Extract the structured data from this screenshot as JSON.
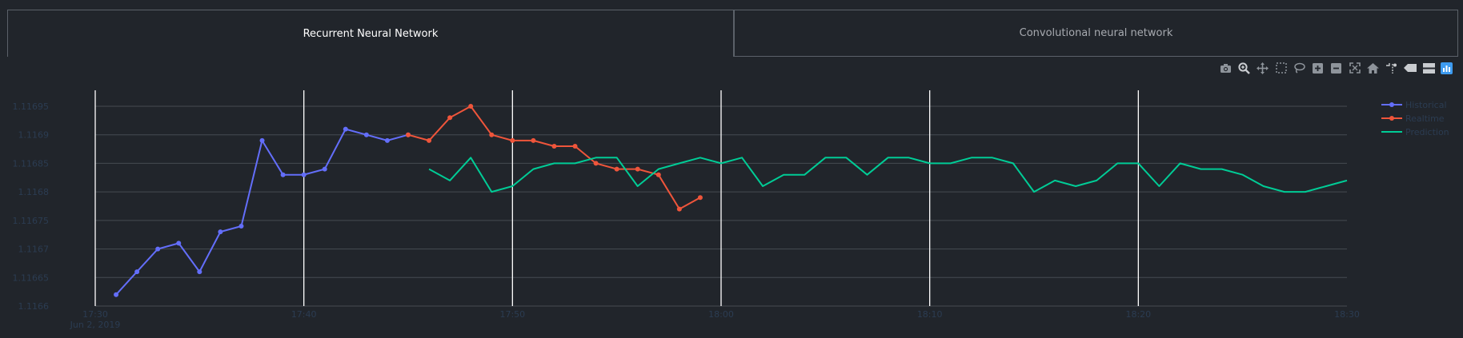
{
  "tabs": [
    {
      "label": "Recurrent Neural Network",
      "active": true
    },
    {
      "label": "Convolutional neural network",
      "active": false
    }
  ],
  "modebar": [
    {
      "name": "camera-icon",
      "title": "Download plot as a png"
    },
    {
      "name": "zoom-icon",
      "title": "Zoom"
    },
    {
      "name": "pan-icon",
      "title": "Pan"
    },
    {
      "name": "box-select-icon",
      "title": "Box Select"
    },
    {
      "name": "lasso-select-icon",
      "title": "Lasso Select"
    },
    {
      "name": "zoom-in-icon",
      "title": "Zoom in"
    },
    {
      "name": "zoom-out-icon",
      "title": "Zoom out"
    },
    {
      "name": "autoscale-icon",
      "title": "Autoscale"
    },
    {
      "name": "reset-axes-icon",
      "title": "Reset axes"
    },
    {
      "name": "spike-lines-icon",
      "title": "Toggle Spike Lines"
    },
    {
      "name": "hover-closest-icon",
      "title": "Show closest data on hover"
    },
    {
      "name": "hover-compare-icon",
      "title": "Compare data on hover"
    },
    {
      "name": "plotly-logo-icon",
      "title": "Produced with Plotly"
    }
  ],
  "colors": {
    "background": "#21252b",
    "grid": "#464b52",
    "tick_text": "#2b3c52",
    "historical": "#636efa",
    "realtime": "#ef553b",
    "prediction": "#00cc96",
    "modebar_icon": "#8e949b",
    "modebar_active": "#c9ccd0",
    "plotly_logo": "#3d9bf0"
  },
  "chart_data": {
    "type": "line",
    "title": "",
    "xlabel": "",
    "ylabel": "",
    "xlim": [
      "17:30",
      "18:30"
    ],
    "ylim": [
      1.1166,
      1.11695
    ],
    "x_date_label": "Jun 2, 2019",
    "x_ticks": [
      "17:30",
      "17:40",
      "17:50",
      "18:00",
      "18:10",
      "18:20",
      "18:30"
    ],
    "y_ticks": [
      "1.1166",
      "1.11665",
      "1.1167",
      "1.11675",
      "1.1168",
      "1.11685",
      "1.1169",
      "1.11695"
    ],
    "grid": {
      "x": true,
      "y": true
    },
    "legend_position": "top-right",
    "series": [
      {
        "name": "Historical",
        "mode": "lines+markers",
        "x": [
          "17:31",
          "17:32",
          "17:33",
          "17:34",
          "17:35",
          "17:36",
          "17:37",
          "17:38",
          "17:39",
          "17:40",
          "17:41",
          "17:42",
          "17:43",
          "17:44",
          "17:45"
        ],
        "values": [
          1.11662,
          1.11666,
          1.1167,
          1.11671,
          1.11666,
          1.11673,
          1.11674,
          1.11689,
          1.11683,
          1.11683,
          1.11684,
          1.11691,
          1.1169,
          1.11689,
          1.1169
        ]
      },
      {
        "name": "Realtime",
        "mode": "lines+markers",
        "x": [
          "17:45",
          "17:46",
          "17:47",
          "17:48",
          "17:49",
          "17:50",
          "17:51",
          "17:52",
          "17:53",
          "17:54",
          "17:55",
          "17:56",
          "17:57",
          "17:58",
          "17:59"
        ],
        "values": [
          1.1169,
          1.11689,
          1.11693,
          1.11695,
          1.1169,
          1.11689,
          1.11689,
          1.11688,
          1.11688,
          1.11685,
          1.11684,
          1.11684,
          1.11683,
          1.11677,
          1.11679
        ]
      },
      {
        "name": "Prediction",
        "mode": "lines",
        "x": [
          "17:46",
          "17:47",
          "17:48",
          "17:49",
          "17:50",
          "17:51",
          "17:52",
          "17:53",
          "17:54",
          "17:55",
          "17:56",
          "17:57",
          "17:58",
          "17:59",
          "18:00",
          "18:01",
          "18:02",
          "18:03",
          "18:04",
          "18:05",
          "18:06",
          "18:07",
          "18:08",
          "18:09",
          "18:10",
          "18:11",
          "18:12",
          "18:13",
          "18:14",
          "18:15",
          "18:16",
          "18:17",
          "18:18",
          "18:19",
          "18:20",
          "18:21",
          "18:22",
          "18:23",
          "18:24",
          "18:25",
          "18:26",
          "18:27",
          "18:28",
          "18:29",
          "18:30"
        ],
        "values": [
          1.11684,
          1.11682,
          1.11686,
          1.1168,
          1.11681,
          1.11684,
          1.11685,
          1.11685,
          1.11686,
          1.11686,
          1.11681,
          1.11684,
          1.11685,
          1.11686,
          1.11685,
          1.11686,
          1.11681,
          1.11683,
          1.11683,
          1.11686,
          1.11686,
          1.11683,
          1.11686,
          1.11686,
          1.11685,
          1.11685,
          1.11686,
          1.11686,
          1.11685,
          1.1168,
          1.11682,
          1.11681,
          1.11682,
          1.11685,
          1.11685,
          1.11681,
          1.11685,
          1.11684,
          1.11684,
          1.11683,
          1.11681,
          1.1168,
          1.1168,
          1.11681,
          1.11682
        ]
      }
    ]
  }
}
